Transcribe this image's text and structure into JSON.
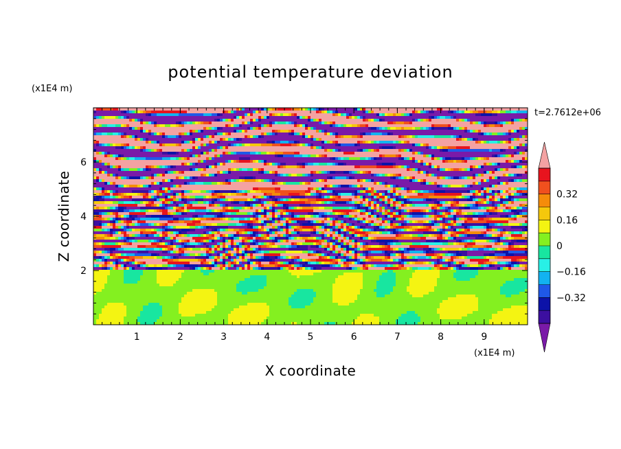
{
  "chart_data": {
    "type": "heatmap",
    "title": "potential temperature deviation",
    "xlabel": "X coordinate",
    "ylabel": "Z coordinate",
    "x_scale_label": "(x1E4 m)",
    "y_scale_label": "(x1E4 m)",
    "time_label": "t=2.7612e+06",
    "xlim": [
      0,
      10
    ],
    "ylim": [
      0,
      8
    ],
    "x_ticks": [
      1,
      2,
      3,
      4,
      5,
      6,
      7,
      8,
      9
    ],
    "y_ticks": [
      2,
      4,
      6
    ],
    "colorbar": {
      "levels": [
        -0.48,
        -0.4,
        -0.32,
        -0.24,
        -0.16,
        -0.08,
        0,
        0.08,
        0.16,
        0.24,
        0.32,
        0.4,
        0.48
      ],
      "tick_values": [
        -0.32,
        -0.16,
        0,
        0.16,
        0.32
      ],
      "tick_labels": [
        "−0.32",
        "−0.16",
        "0",
        "0.16",
        "0.32"
      ],
      "colors": [
        "#7a1aa8",
        "#3c0fa0",
        "#0c12a8",
        "#1f58e8",
        "#12b2f0",
        "#28f0e6",
        "#18e6a0",
        "#84f020",
        "#f4f412",
        "#f5c80c",
        "#f58c0a",
        "#f0501e",
        "#e8141e",
        "#f4a2a2"
      ],
      "extend": "both"
    },
    "regions": [
      {
        "z_range": [
          0,
          2
        ],
        "description_values": [
          "near 0 (green / light green)"
        ]
      },
      {
        "z_range": [
          2,
          5
        ],
        "description_values": [
          "alternating bands from -0.48 to 0.48"
        ]
      },
      {
        "z_range": [
          5,
          8
        ],
        "description_values": [
          "strong alternating layers of -0.48 and 0.48"
        ]
      }
    ]
  }
}
